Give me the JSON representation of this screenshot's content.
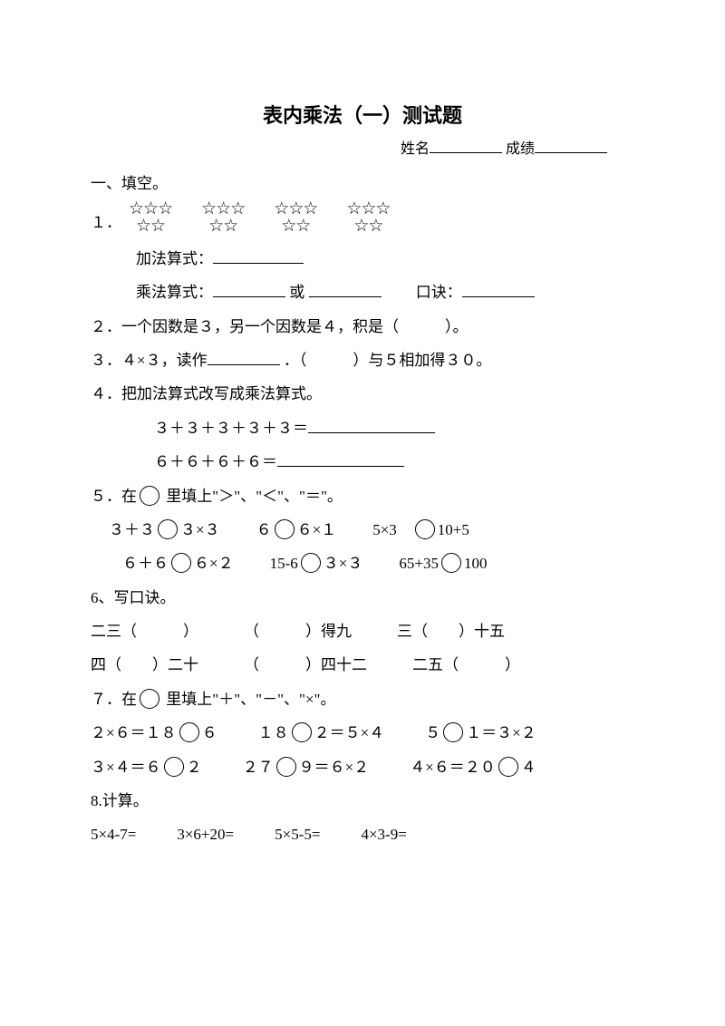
{
  "title": "表内乘法（一）测试题",
  "header": {
    "name_label": "姓名",
    "score_label": "成绩"
  },
  "section1_title": "一、填空。",
  "q1": {
    "num": "１．",
    "addition_label": "加法算式：",
    "mult_label": "乘法算式：",
    "or": "或",
    "koujue_label": "口诀："
  },
  "q2": {
    "text": "２．一个因数是３，另一个因数是４，积是（　　　）。"
  },
  "q3": {
    "a": "３．４×３，读作",
    "b": "．（　　　）与５相加得３０。"
  },
  "q4": {
    "title": "４．把加法算式改写成乘法算式。",
    "line1": "３＋３＋３＋３＋３＝",
    "line2": "６＋６＋６＋６＝"
  },
  "q5": {
    "title_a": "５．在",
    "title_b": "里填上\"＞\"、\"＜\"、\"＝\"。",
    "items": [
      [
        "３＋３",
        "３×３"
      ],
      [
        "６",
        "６×１"
      ],
      [
        "5×3",
        "10+5"
      ],
      [
        "６＋６",
        "６×２"
      ],
      [
        "15-6",
        "３×３"
      ],
      [
        "65+35",
        "100"
      ]
    ]
  },
  "q6": {
    "title": "6、写口诀。",
    "row1": [
      "二三（　　　）",
      "（　　　）得九",
      "三（　　）十五"
    ],
    "row2": [
      "四（　　）二十",
      "（　　　）四十二",
      "二五（　　　）"
    ]
  },
  "q7": {
    "title_a": "７．在",
    "title_b": "里填上\"＋\"、\"－\"、\"×\"。",
    "row1": [
      {
        "a": "２×６＝１８",
        "b": "６"
      },
      {
        "a": "１８",
        "b": "２＝５×４"
      },
      {
        "a": "５",
        "b": "１＝３×２"
      }
    ],
    "row2": [
      {
        "a": "３×４＝６",
        "b": "２"
      },
      {
        "a": "２７",
        "b": "９＝６×２"
      },
      {
        "a": "４×６＝２０",
        "b": "４"
      }
    ]
  },
  "q8": {
    "title": "8.计算。",
    "items": [
      "5×4-7=",
      "3×6+20=",
      "5×5-5=",
      "4×3-9="
    ]
  }
}
